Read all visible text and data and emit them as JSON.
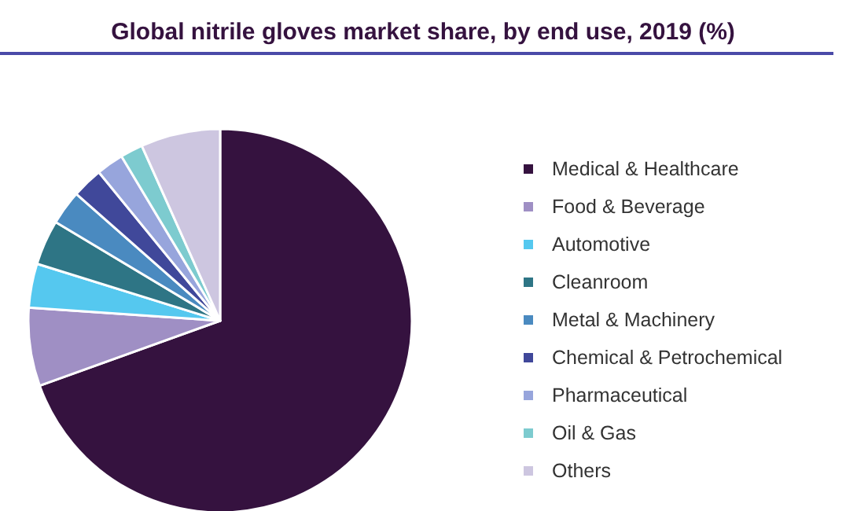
{
  "chart_data": {
    "type": "pie",
    "title": "Global nitrile gloves market share, by end use, 2019 (%)",
    "categories": [
      "Medical & Healthcare",
      "Food & Beverage",
      "Automotive",
      "Cleanroom",
      "Metal & Machinery",
      "Chemical & Petrochemical",
      "Pharmaceutical",
      "Oil & Gas",
      "Others"
    ],
    "values": [
      69.5,
      6.6,
      3.7,
      3.8,
      2.9,
      2.6,
      2.3,
      1.9,
      6.7
    ],
    "colors": [
      "#35123f",
      "#9f8fc4",
      "#55c8ef",
      "#2e7585",
      "#4a8ac0",
      "#40489a",
      "#97a5dc",
      "#7dcbcf",
      "#cdc6e0"
    ],
    "legend": "right"
  }
}
